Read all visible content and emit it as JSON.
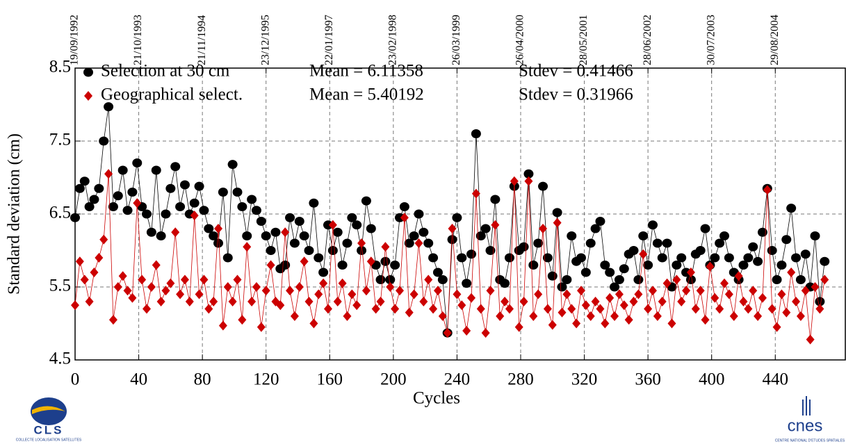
{
  "chart_data": {
    "type": "line",
    "xlabel": "Cycles",
    "ylabel": "Standard deviation (cm)",
    "xlim": [
      0,
      484
    ],
    "xticks": [
      0,
      40,
      80,
      120,
      160,
      200,
      240,
      280,
      320,
      360,
      400,
      440
    ],
    "ylim": [
      4.5,
      8.5
    ],
    "yticks": [
      4.5,
      5.5,
      6.5,
      7.5,
      8.5
    ],
    "top_ticks": [
      {
        "value": 0,
        "label": "19/09/1992"
      },
      {
        "value": 40,
        "label": "21/10/1993"
      },
      {
        "value": 80,
        "label": "21/11/1994"
      },
      {
        "value": 120,
        "label": "23/12/1995"
      },
      {
        "value": 160,
        "label": "22/01/1997"
      },
      {
        "value": 200,
        "label": "23/02/1998"
      },
      {
        "value": 240,
        "label": "26/03/1999"
      },
      {
        "value": 280,
        "label": "26/04/2000"
      },
      {
        "value": 320,
        "label": "28/05/2001"
      },
      {
        "value": 360,
        "label": "28/06/2002"
      },
      {
        "value": 400,
        "label": "30/07/2003"
      },
      {
        "value": 440,
        "label": "29/08/2004"
      }
    ],
    "grid": true,
    "x": [
      0,
      3,
      6,
      9,
      12,
      15,
      18,
      21,
      24,
      27,
      30,
      33,
      36,
      39,
      42,
      45,
      48,
      51,
      54,
      57,
      60,
      63,
      66,
      69,
      72,
      75,
      78,
      81,
      84,
      87,
      90,
      93,
      96,
      99,
      102,
      105,
      108,
      111,
      114,
      117,
      120,
      123,
      126,
      129,
      132,
      135,
      138,
      141,
      144,
      147,
      150,
      153,
      156,
      159,
      162,
      165,
      168,
      171,
      174,
      177,
      180,
      183,
      186,
      189,
      192,
      195,
      198,
      201,
      204,
      207,
      210,
      213,
      216,
      219,
      222,
      225,
      228,
      231,
      234,
      237,
      240,
      243,
      246,
      249,
      252,
      255,
      258,
      261,
      264,
      267,
      270,
      273,
      276,
      279,
      282,
      285,
      288,
      291,
      294,
      297,
      300,
      303,
      306,
      309,
      312,
      315,
      318,
      321,
      324,
      327,
      330,
      333,
      336,
      339,
      342,
      345,
      348,
      351,
      354,
      357,
      360,
      363,
      366,
      369,
      372,
      375,
      378,
      381,
      384,
      387,
      390,
      393,
      396,
      399,
      402,
      405,
      408,
      411,
      414,
      417,
      420,
      423,
      426,
      429,
      432,
      435,
      438,
      441,
      444,
      447,
      450,
      453,
      456,
      459,
      462,
      465,
      468,
      471
    ],
    "series": [
      {
        "name": "Selection at 30 cm",
        "color": "#000000",
        "marker": "circle",
        "mean_label": "Mean = 6.11358",
        "stdev_label": "Stdev = 0.41466",
        "values": [
          6.45,
          6.85,
          6.95,
          6.6,
          6.7,
          6.85,
          7.5,
          7.97,
          6.6,
          6.75,
          7.1,
          6.55,
          6.8,
          7.2,
          6.6,
          6.5,
          6.25,
          7.1,
          6.2,
          6.5,
          6.85,
          7.15,
          6.6,
          6.9,
          6.5,
          6.65,
          6.88,
          6.55,
          6.3,
          6.2,
          6.1,
          6.8,
          5.9,
          7.18,
          6.8,
          6.6,
          6.2,
          6.7,
          6.55,
          6.4,
          6.2,
          6.0,
          6.25,
          5.75,
          5.8,
          6.45,
          6.1,
          6.4,
          6.2,
          6.0,
          6.65,
          5.9,
          5.7,
          6.35,
          6.0,
          6.25,
          5.8,
          6.1,
          6.45,
          6.35,
          6.0,
          6.68,
          6.3,
          5.8,
          5.6,
          5.85,
          5.6,
          5.8,
          6.45,
          6.6,
          6.1,
          6.2,
          6.5,
          6.25,
          6.1,
          5.9,
          5.7,
          5.6,
          4.87,
          6.15,
          6.45,
          5.9,
          5.55,
          5.95,
          7.6,
          6.2,
          6.3,
          6.0,
          6.7,
          5.6,
          5.55,
          5.9,
          6.88,
          6.0,
          6.05,
          7.05,
          5.8,
          6.1,
          6.88,
          5.9,
          5.65,
          6.52,
          5.5,
          5.6,
          6.2,
          5.85,
          5.9,
          5.7,
          6.1,
          6.3,
          6.4,
          5.8,
          5.7,
          5.5,
          5.6,
          5.75,
          5.95,
          6.0,
          5.6,
          6.2,
          5.8,
          6.35,
          6.1,
          5.9,
          6.1,
          5.5,
          5.8,
          5.9,
          5.7,
          5.6,
          5.95,
          6.0,
          6.3,
          5.8,
          5.9,
          6.1,
          6.2,
          5.9,
          5.7,
          5.6,
          5.8,
          5.9,
          6.05,
          5.85,
          6.25,
          6.85,
          6.0,
          5.6,
          5.8,
          6.15,
          6.58,
          5.9,
          5.6,
          5.95,
          5.5,
          6.2,
          5.3,
          5.85
        ]
      },
      {
        "name": "Geographical select.",
        "color": "#cc0000",
        "marker": "diamond",
        "mean_label": "Mean = 5.40192",
        "stdev_label": "Stdev = 0.31966",
        "values": [
          5.25,
          5.85,
          5.6,
          5.3,
          5.7,
          5.9,
          6.15,
          7.05,
          5.05,
          5.5,
          5.65,
          5.45,
          5.35,
          6.65,
          5.6,
          5.2,
          5.5,
          5.8,
          5.3,
          5.45,
          5.55,
          6.25,
          5.4,
          5.6,
          5.3,
          6.48,
          5.4,
          5.6,
          5.2,
          5.3,
          6.3,
          4.97,
          5.5,
          5.3,
          5.6,
          5.05,
          6.05,
          5.3,
          5.5,
          4.95,
          5.45,
          5.8,
          5.3,
          5.25,
          6.25,
          5.45,
          5.1,
          5.5,
          5.85,
          5.3,
          5.0,
          5.4,
          5.55,
          5.2,
          6.35,
          5.3,
          5.55,
          5.1,
          5.4,
          5.25,
          6.1,
          5.45,
          5.85,
          5.2,
          5.3,
          6.05,
          5.5,
          5.2,
          5.45,
          6.45,
          5.15,
          5.4,
          6.1,
          5.3,
          5.6,
          5.2,
          5.45,
          5.1,
          4.87,
          6.3,
          5.4,
          5.25,
          4.9,
          5.35,
          6.78,
          5.2,
          4.87,
          5.45,
          6.35,
          5.1,
          5.3,
          5.2,
          6.95,
          4.95,
          5.3,
          6.95,
          5.1,
          5.4,
          6.3,
          5.2,
          4.98,
          6.38,
          5.15,
          5.4,
          5.2,
          5.0,
          5.45,
          5.25,
          5.1,
          5.3,
          5.2,
          5.0,
          5.35,
          5.1,
          5.4,
          5.25,
          5.05,
          5.3,
          5.4,
          5.95,
          5.2,
          5.45,
          5.1,
          5.3,
          5.55,
          5.0,
          5.6,
          5.3,
          5.45,
          5.7,
          5.2,
          5.45,
          5.05,
          5.78,
          5.35,
          5.2,
          5.55,
          5.4,
          5.1,
          5.65,
          5.3,
          5.2,
          5.45,
          5.1,
          5.35,
          6.83,
          5.2,
          4.95,
          5.4,
          5.15,
          5.7,
          5.3,
          5.1,
          5.45,
          4.78,
          5.5,
          5.2,
          5.6
        ]
      }
    ]
  },
  "logos": {
    "left": {
      "name": "CLS",
      "caption": "COLLECTE LOCALISATION SATELLITES"
    },
    "right": {
      "name": "cnes",
      "caption": "CENTRE NATIONAL D'ETUDES SPATIALES"
    }
  }
}
